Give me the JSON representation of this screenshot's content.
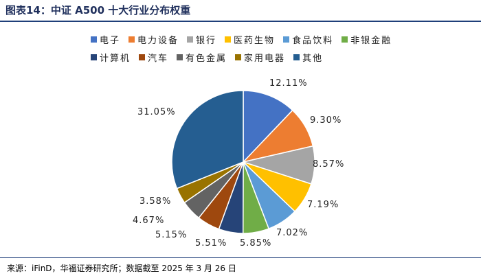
{
  "header": {
    "title": "图表14：中证 A500 十大行业分布权重"
  },
  "source": "来源：iFinD，华福证券研究所；数据截至 2025 年 3 月 26 日",
  "chart_data": {
    "type": "pie",
    "title": "中证 A500 十大行业分布权重",
    "unit": "%",
    "slices": [
      {
        "label": "电子",
        "value": 12.11,
        "display": "12.11%",
        "color": "#4472c4"
      },
      {
        "label": "电力设备",
        "value": 9.3,
        "display": "9.30%",
        "color": "#ed7d31"
      },
      {
        "label": "银行",
        "value": 8.57,
        "display": "8.57%",
        "color": "#a5a5a5"
      },
      {
        "label": "医药生物",
        "value": 7.19,
        "display": "7.19%",
        "color": "#ffc000"
      },
      {
        "label": "食品饮料",
        "value": 7.02,
        "display": "7.02%",
        "color": "#5b9bd5"
      },
      {
        "label": "非银金融",
        "value": 5.85,
        "display": "5.85%",
        "color": "#70ad47"
      },
      {
        "label": "计算机",
        "value": 5.51,
        "display": "5.51%",
        "color": "#264478"
      },
      {
        "label": "汽车",
        "value": 5.15,
        "display": "5.15%",
        "color": "#9e480e"
      },
      {
        "label": "有色金属",
        "value": 4.67,
        "display": "4.67%",
        "color": "#636363"
      },
      {
        "label": "家用电器",
        "value": 3.58,
        "display": "3.58%",
        "color": "#997300"
      },
      {
        "label": "其他",
        "value": 31.05,
        "display": "31.05%",
        "color": "#255e91"
      }
    ],
    "legend_position": "top"
  }
}
